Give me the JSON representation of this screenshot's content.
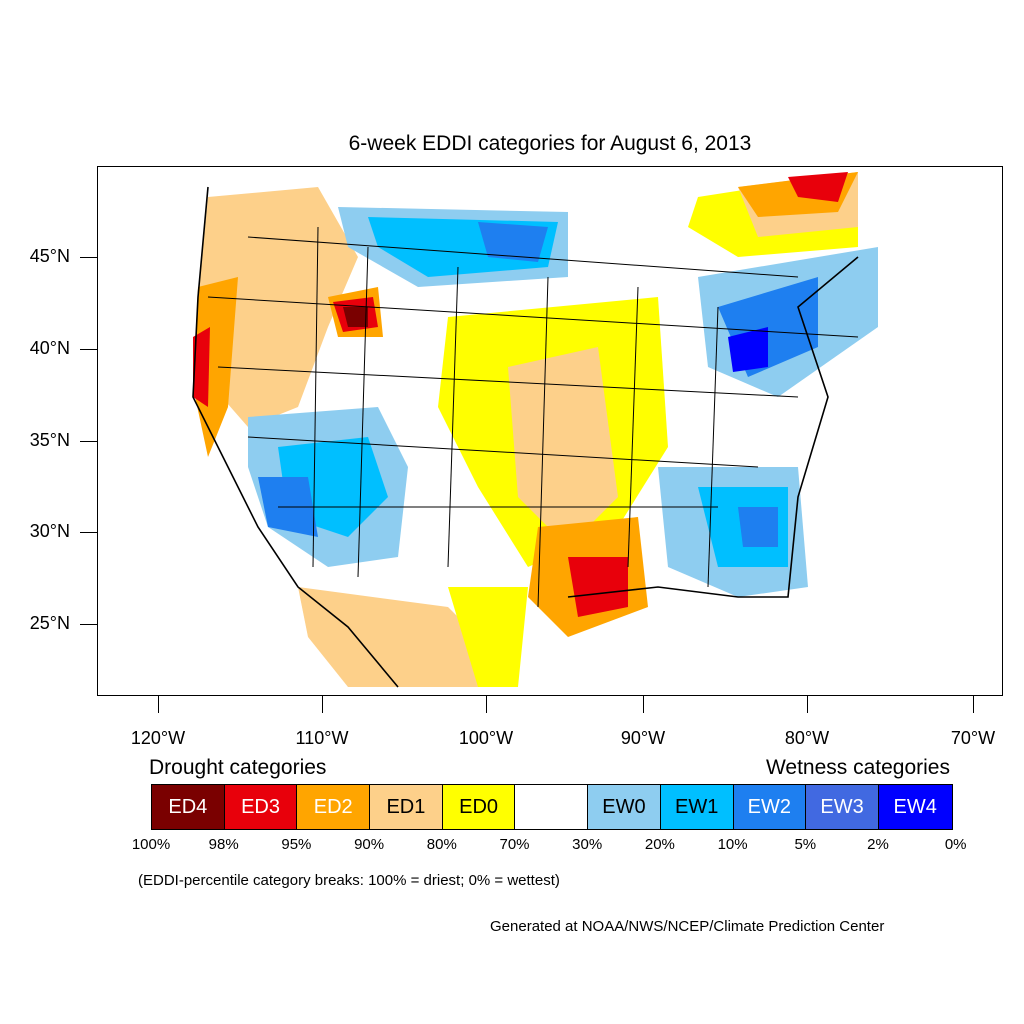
{
  "title": "6-week EDDI categories for August 6, 2013",
  "lat_labels": [
    "45°N",
    "40°N",
    "35°N",
    "30°N",
    "25°N"
  ],
  "lon_labels": [
    "120°W",
    "110°W",
    "100°W",
    "90°W",
    "80°W",
    "70°W"
  ],
  "legend": {
    "drought_title": "Drought categories",
    "wetness_title": "Wetness categories",
    "categories": [
      {
        "label": "ED4",
        "color": "#7a0000",
        "text_color": "#ffffff"
      },
      {
        "label": "ED3",
        "color": "#e8000b",
        "text_color": "#ffffff"
      },
      {
        "label": "ED2",
        "color": "#ffa500",
        "text_color": "#ffffff"
      },
      {
        "label": "ED1",
        "color": "#fdd08a",
        "text_color": "#000000"
      },
      {
        "label": "ED0",
        "color": "#ffff00",
        "text_color": "#000000"
      },
      {
        "label": "",
        "color": "#ffffff",
        "text_color": "#000000"
      },
      {
        "label": "EW0",
        "color": "#8ecdf0",
        "text_color": "#000000"
      },
      {
        "label": "EW1",
        "color": "#00bfff",
        "text_color": "#000000"
      },
      {
        "label": "EW2",
        "color": "#1e7ff0",
        "text_color": "#ffffff"
      },
      {
        "label": "EW3",
        "color": "#4169e1",
        "text_color": "#ffffff"
      },
      {
        "label": "EW4",
        "color": "#0000ff",
        "text_color": "#ffffff"
      }
    ],
    "percent_breaks": [
      "100%",
      "98%",
      "95%",
      "90%",
      "80%",
      "70%",
      "30%",
      "20%",
      "10%",
      "5%",
      "2%",
      "0%"
    ]
  },
  "note": "(EDDI-percentile category breaks: 100% = driest; 0% = wettest)",
  "credit": "Generated at NOAA/NWS/NCEP/Climate Prediction Center"
}
